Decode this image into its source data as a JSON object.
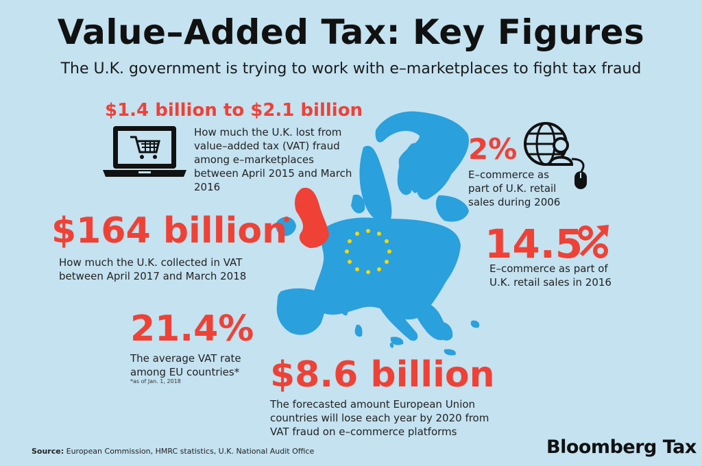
{
  "header": {
    "title": "Value–Added Tax: Key Figures",
    "subtitle": "The U.K. government is trying to work with e–marketplaces to fight tax fraud"
  },
  "figures": [
    {
      "value": "$1.4 billion to $2.1 billion",
      "description": "How much the U.K. lost from value–added tax (VAT) fraud among e–marketplaces between April 2015 and March 2016",
      "icon": "laptop-cart-icon"
    },
    {
      "value": "$164 billion",
      "description": "How much the U.K. collected in VAT between April 2017 and March 2018"
    },
    {
      "value": "21.4%",
      "description": "The average VAT rate among EU countries*",
      "note": "*as of Jan. 1, 2018"
    },
    {
      "value": "$8.6 billion",
      "description": "The forecasted amount European Union countries will lose each year by 2020 from VAT fraud on e–commerce platforms"
    },
    {
      "value": "2%",
      "description": "E–commerce as part of U.K. retail sales during 2006",
      "icon": "globe-user-mouse-icon"
    },
    {
      "value": "14.5",
      "description": "E–commerce as part of U.K. retail sales in 2016",
      "icon": "percent-up-arrow-icon"
    }
  ],
  "footer": {
    "source_label": "Source:",
    "source_text": " European Commission, HMRC statistics, U.K. National Audit Office",
    "brand": "Bloomberg Tax"
  },
  "colors": {
    "background": "#c4e2f0",
    "accent_red": "#ef4136",
    "map_blue": "#2aa0dc",
    "uk_red": "#ef4136",
    "star_yellow": "#f5d90a"
  }
}
